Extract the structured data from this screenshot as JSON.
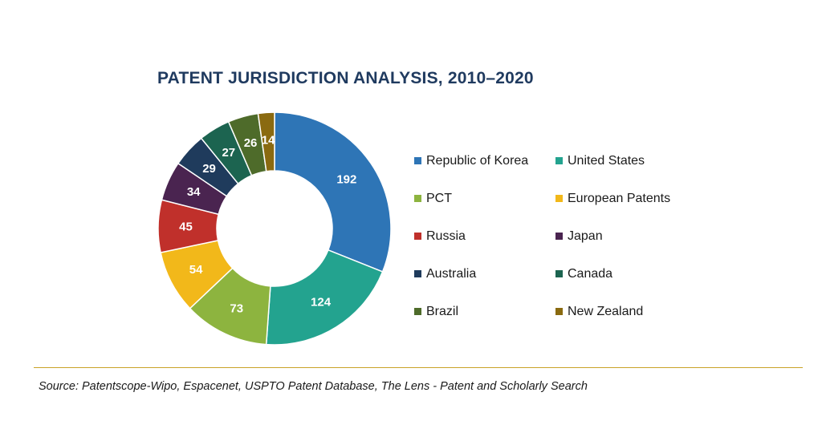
{
  "chart_data": {
    "type": "pie",
    "title": "PATENT JURISDICTION ANALYSIS, 2010–2020",
    "categories": [
      "Republic of Korea",
      "United States",
      "PCT",
      "European Patents",
      "Russia",
      "Japan",
      "Australia",
      "Canada",
      "Brazil",
      "New Zealand"
    ],
    "values": [
      192,
      124,
      73,
      54,
      45,
      34,
      29,
      27,
      26,
      14
    ],
    "colors": [
      "#2e75b6",
      "#23a38f",
      "#8db43f",
      "#f2b81a",
      "#c0302b",
      "#4a2450",
      "#1f3b5c",
      "#1c6450",
      "#4e6b2a",
      "#8a6a10"
    ],
    "donut": true,
    "legend_position": "right",
    "source": "Source: Patentscope-Wipo, Espacenet, USPTO Patent Database, The Lens - Patent and Scholarly Search"
  }
}
